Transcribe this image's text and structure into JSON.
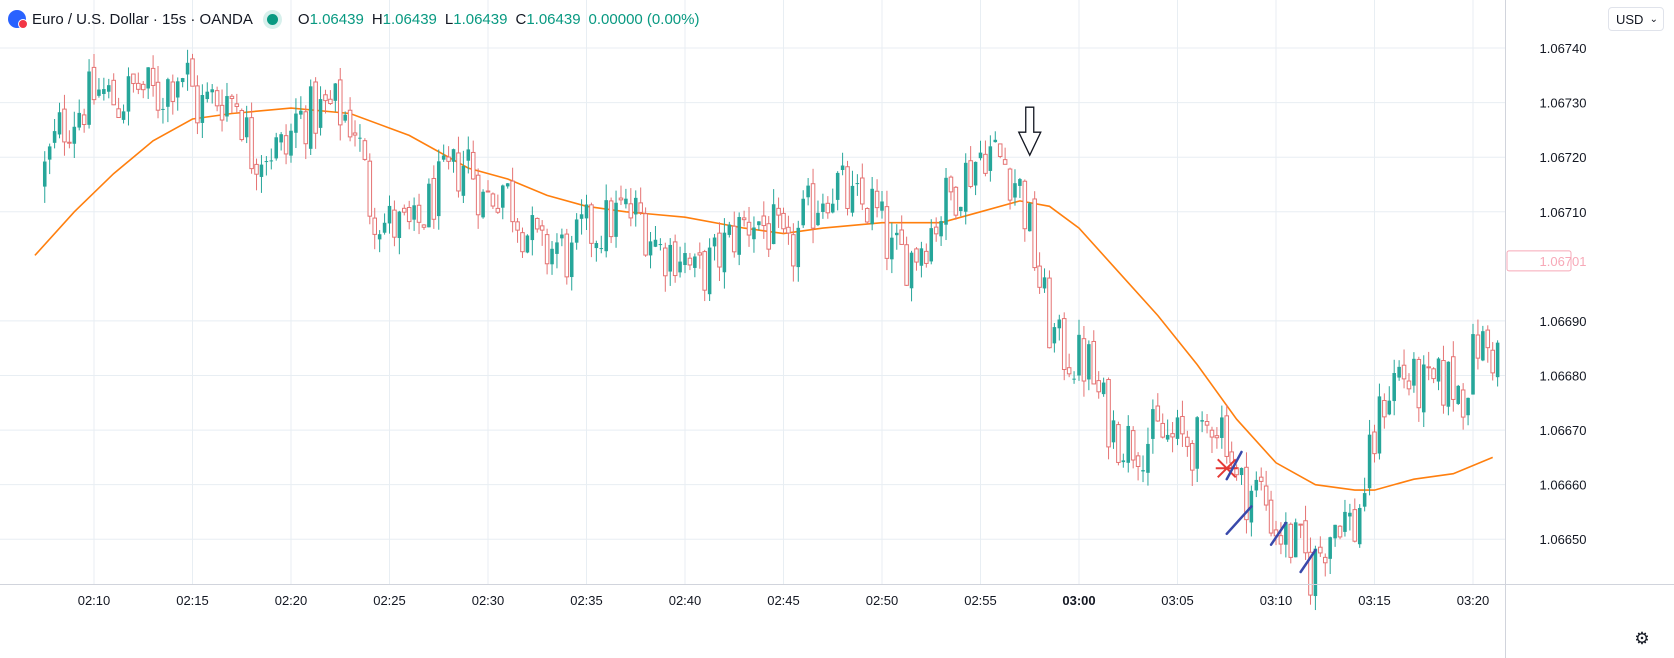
{
  "legend": {
    "symbol": "Euro / U.S. Dollar · 15s · OANDA",
    "open_label": "O",
    "open": "1.06439",
    "high_label": "H",
    "high": "1.06439",
    "low_label": "L",
    "low": "1.06439",
    "close_label": "C",
    "close": "1.06439",
    "change": "0.00000 (0.00%)"
  },
  "currency_selector": {
    "value": "USD"
  },
  "colors": {
    "up": "#26a69a",
    "down": "#ef9a9a",
    "ma": "#ff7f0e",
    "grid": "#e8eef3",
    "price_label": "#f7a9b8"
  },
  "icons": {
    "settings": "gear-icon",
    "currency_dropdown": "chevron-down-icon",
    "annotation_arrow": "down-arrow-icon",
    "annotation_cross": "x-mark-icon"
  },
  "chart_data": {
    "type": "candlestick",
    "interval": "15s",
    "x_ticks": [
      "02:10",
      "02:15",
      "02:20",
      "02:25",
      "02:30",
      "02:35",
      "02:40",
      "02:45",
      "02:50",
      "02:55",
      "03:00",
      "03:05",
      "03:10",
      "03:15",
      "03:20"
    ],
    "x_tick_bold": "03:00",
    "y_ticks": [
      "1.06740",
      "1.06730",
      "1.06720",
      "1.06710",
      "1.06690",
      "1.06680",
      "1.06670",
      "1.06660",
      "1.06650"
    ],
    "ylim": [
      1.066418,
      1.067488
    ],
    "current_price_label": "1.06701",
    "current_price": 1.06701,
    "price_path": [
      [
        "02:07:30",
        1.06715
      ],
      [
        "02:08:30",
        1.06725
      ],
      [
        "02:09:30",
        1.06729
      ],
      [
        "02:10:30",
        1.06732
      ],
      [
        "02:11:30",
        1.0673
      ],
      [
        "02:12:30",
        1.06733
      ],
      [
        "02:13:30",
        1.06731
      ],
      [
        "02:14:30",
        1.06736
      ],
      [
        "02:15:00",
        1.06735
      ],
      [
        "02:15:30",
        1.06729
      ],
      [
        "02:16:30",
        1.06731
      ],
      [
        "02:17:30",
        1.06731
      ],
      [
        "02:18:15",
        1.06721
      ],
      [
        "02:19:00",
        1.06722
      ],
      [
        "02:20:00",
        1.06721
      ],
      [
        "02:20:30",
        1.06727
      ],
      [
        "02:21:30",
        1.06728
      ],
      [
        "02:22:30",
        1.06729
      ],
      [
        "02:23:30",
        1.06726
      ],
      [
        "02:24:15",
        1.06712
      ],
      [
        "02:25:00",
        1.06708
      ],
      [
        "02:26:30",
        1.06706
      ],
      [
        "02:27:30",
        1.06713
      ],
      [
        "02:28:30",
        1.06717
      ],
      [
        "02:29:15",
        1.0672
      ],
      [
        "02:30:00",
        1.06712
      ],
      [
        "02:31:00",
        1.06715
      ],
      [
        "02:32:00",
        1.06708
      ],
      [
        "02:33:00",
        1.06702
      ],
      [
        "02:33:45",
        1.06704
      ],
      [
        "02:34:30",
        1.06701
      ],
      [
        "02:35:00",
        1.06706
      ],
      [
        "02:36:00",
        1.06707
      ],
      [
        "02:37:00",
        1.0671
      ],
      [
        "02:38:00",
        1.06709
      ],
      [
        "02:39:00",
        1.06703
      ],
      [
        "02:40:00",
        1.06703
      ],
      [
        "02:40:45",
        1.06698
      ],
      [
        "02:41:45",
        1.06701
      ],
      [
        "02:42:45",
        1.06706
      ],
      [
        "02:43:45",
        1.06709
      ],
      [
        "02:44:45",
        1.06706
      ],
      [
        "02:45:30",
        1.06701
      ],
      [
        "02:46:15",
        1.06708
      ],
      [
        "02:47:15",
        1.06714
      ],
      [
        "02:48:00",
        1.06715
      ],
      [
        "02:48:45",
        1.06711
      ],
      [
        "02:49:45",
        1.06711
      ],
      [
        "02:50:15",
        1.06707
      ],
      [
        "02:50:45",
        1.06702
      ],
      [
        "02:51:45",
        1.06702
      ],
      [
        "02:52:45",
        1.06707
      ],
      [
        "02:53:30",
        1.06712
      ],
      [
        "02:54:30",
        1.06717
      ],
      [
        "02:55:30",
        1.06722
      ],
      [
        "02:56:30",
        1.06719
      ],
      [
        "02:57:00",
        1.06716
      ],
      [
        "02:57:15",
        1.06714
      ],
      [
        "02:57:45",
        1.06707
      ],
      [
        "02:58:15",
        1.06697
      ],
      [
        "02:58:45",
        1.06689
      ],
      [
        "02:59:15",
        1.06685
      ],
      [
        "03:00:00",
        1.06683
      ],
      [
        "03:00:45",
        1.06682
      ],
      [
        "03:01:15",
        1.06676
      ],
      [
        "03:02:00",
        1.0667
      ],
      [
        "03:02:45",
        1.06668
      ],
      [
        "03:03:30",
        1.06668
      ],
      [
        "03:04:15",
        1.06669
      ],
      [
        "03:05:00",
        1.06668
      ],
      [
        "03:05:45",
        1.06668
      ],
      [
        "03:06:30",
        1.06667
      ],
      [
        "03:07:00",
        1.06673
      ],
      [
        "03:07:45",
        1.0667
      ],
      [
        "03:08:15",
        1.0666
      ],
      [
        "03:08:45",
        1.06659
      ],
      [
        "03:09:30",
        1.06659
      ],
      [
        "03:10:15",
        1.06652
      ],
      [
        "03:10:45",
        1.0665
      ],
      [
        "03:11:30",
        1.06648
      ],
      [
        "03:12:00",
        1.06644
      ],
      [
        "03:12:45",
        1.0665
      ],
      [
        "03:13:30",
        1.06655
      ],
      [
        "03:14:15",
        1.06652
      ],
      [
        "03:14:45",
        1.0666
      ],
      [
        "03:15:15",
        1.06668
      ],
      [
        "03:15:45",
        1.06676
      ],
      [
        "03:16:30",
        1.06681
      ],
      [
        "03:17:15",
        1.06678
      ],
      [
        "03:18:00",
        1.06677
      ],
      [
        "03:19:00",
        1.06679
      ],
      [
        "03:19:45",
        1.06677
      ],
      [
        "03:20:30",
        1.06686
      ],
      [
        "03:21:15",
        1.06684
      ]
    ],
    "moving_average": [
      [
        "02:07:00",
        1.06702
      ],
      [
        "02:09:00",
        1.0671
      ],
      [
        "02:11:00",
        1.06717
      ],
      [
        "02:13:00",
        1.06723
      ],
      [
        "02:15:00",
        1.06727
      ],
      [
        "02:17:00",
        1.06728
      ],
      [
        "02:20:00",
        1.06729
      ],
      [
        "02:23:00",
        1.06728
      ],
      [
        "02:26:00",
        1.06724
      ],
      [
        "02:29:00",
        1.06718
      ],
      [
        "02:31:00",
        1.06716
      ],
      [
        "02:33:00",
        1.06713
      ],
      [
        "02:35:00",
        1.06711
      ],
      [
        "02:37:00",
        1.0671
      ],
      [
        "02:40:00",
        1.06709
      ],
      [
        "02:43:00",
        1.06707
      ],
      [
        "02:45:00",
        1.06706
      ],
      [
        "02:47:00",
        1.06707
      ],
      [
        "02:50:00",
        1.06708
      ],
      [
        "02:53:00",
        1.06708
      ],
      [
        "02:55:00",
        1.0671
      ],
      [
        "02:57:00",
        1.06712
      ],
      [
        "02:58:30",
        1.06711
      ],
      [
        "03:00:00",
        1.06707
      ],
      [
        "03:02:00",
        1.06699
      ],
      [
        "03:04:00",
        1.06691
      ],
      [
        "03:06:00",
        1.06682
      ],
      [
        "03:08:00",
        1.06672
      ],
      [
        "03:10:00",
        1.06664
      ],
      [
        "03:12:00",
        1.0666
      ],
      [
        "03:14:00",
        1.06659
      ],
      [
        "03:15:00",
        1.06659
      ],
      [
        "03:17:00",
        1.06661
      ],
      [
        "03:19:00",
        1.06662
      ],
      [
        "03:21:00",
        1.06665
      ]
    ],
    "annotations": {
      "down_arrow_at": [
        "02:57:30",
        1.0672
      ],
      "cross_at": [
        "03:07:30",
        1.06663
      ],
      "marker_lines": [
        [
          [
            "03:07:30",
            1.06661
          ],
          [
            "03:08:15",
            1.06666
          ]
        ],
        [
          [
            "03:07:30",
            1.06651
          ],
          [
            "03:08:45",
            1.06656
          ]
        ],
        [
          [
            "03:09:45",
            1.06649
          ],
          [
            "03:10:30",
            1.06653
          ]
        ],
        [
          [
            "03:11:15",
            1.06644
          ],
          [
            "03:12:00",
            1.06648
          ]
        ]
      ]
    }
  }
}
